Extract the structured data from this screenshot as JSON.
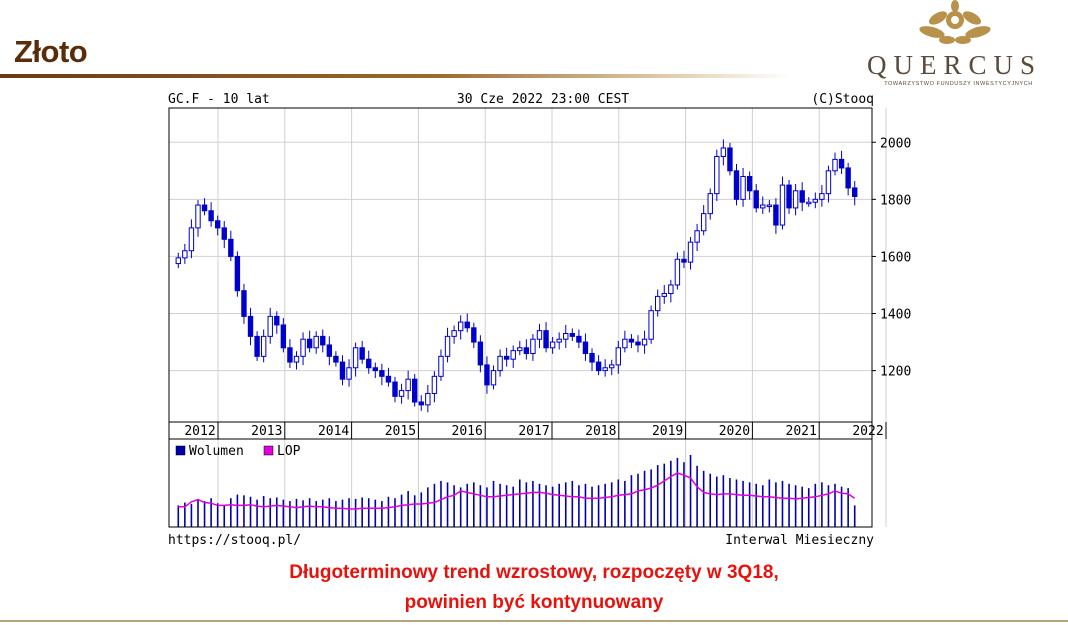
{
  "slide": {
    "title": "Złoto",
    "caption_line1": "Długoterminowy trend wzrostowy, rozpoczęty w 3Q18,",
    "caption_line2": "powinien być kontynuowany"
  },
  "logo": {
    "word": "QUERCUS",
    "subtitle": "TOWARZYSTWO FUNDUSZY INWESTYCYJNYCH",
    "gold": "#b8924a"
  },
  "chart_data": {
    "type": "candlestick",
    "header_left": "GC.F - 10 lat",
    "header_center": "30 Cze 2022 23:00 CEST",
    "header_right": "(C)Stooq",
    "footer_left": "https://stooq.pl/",
    "footer_right": "Interwal Miesieczny",
    "y_ticks": [
      1200,
      1400,
      1600,
      1800,
      2000
    ],
    "ylim": [
      1020,
      2120
    ],
    "x_ticks": [
      "2012",
      "2013",
      "2014",
      "2015",
      "2016",
      "2017",
      "2018",
      "2019",
      "2020",
      "2021",
      "2022"
    ],
    "grid": true,
    "up_color": "#ffffff",
    "down_color": "#0000cc",
    "candle_stroke": "#0000cc",
    "closes": [
      1595,
      1620,
      1700,
      1780,
      1760,
      1725,
      1700,
      1660,
      1600,
      1480,
      1390,
      1320,
      1250,
      1320,
      1390,
      1360,
      1280,
      1230,
      1250,
      1310,
      1280,
      1320,
      1290,
      1250,
      1230,
      1170,
      1210,
      1280,
      1240,
      1210,
      1200,
      1180,
      1160,
      1110,
      1130,
      1170,
      1090,
      1080,
      1120,
      1180,
      1250,
      1320,
      1340,
      1370,
      1350,
      1300,
      1220,
      1150,
      1200,
      1250,
      1240,
      1270,
      1280,
      1260,
      1310,
      1340,
      1280,
      1300,
      1310,
      1330,
      1320,
      1300,
      1260,
      1230,
      1200,
      1210,
      1220,
      1280,
      1310,
      1300,
      1290,
      1310,
      1410,
      1460,
      1470,
      1500,
      1590,
      1580,
      1650,
      1690,
      1750,
      1820,
      1950,
      1980,
      1900,
      1800,
      1880,
      1830,
      1770,
      1780,
      1780,
      1710,
      1850,
      1770,
      1830,
      1790,
      1790,
      1800,
      1820,
      1900,
      1940,
      1910,
      1840,
      1810
    ],
    "volume_max": 100,
    "volume": [
      30,
      34,
      32,
      38,
      36,
      40,
      33,
      30,
      40,
      45,
      44,
      42,
      38,
      43,
      40,
      41,
      38,
      36,
      39,
      37,
      40,
      36,
      38,
      40,
      36,
      38,
      40,
      39,
      41,
      40,
      38,
      36,
      42,
      40,
      45,
      50,
      44,
      48,
      55,
      60,
      64,
      62,
      58,
      55,
      60,
      62,
      58,
      55,
      64,
      60,
      58,
      56,
      66,
      62,
      64,
      60,
      58,
      56,
      60,
      62,
      64,
      58,
      60,
      56,
      58,
      60,
      62,
      66,
      64,
      72,
      74,
      78,
      80,
      86,
      88,
      92,
      96,
      90,
      100,
      85,
      78,
      74,
      70,
      72,
      68,
      66,
      64,
      62,
      60,
      58,
      66,
      62,
      64,
      60,
      58,
      56,
      54,
      60,
      62,
      58,
      60,
      56,
      54,
      30
    ],
    "lop_max": 100,
    "lop": [
      28,
      28,
      35,
      38,
      34,
      33,
      30,
      30,
      31,
      30,
      30,
      31,
      29,
      28,
      29,
      30,
      29,
      28,
      27,
      28,
      29,
      28,
      28,
      27,
      26,
      26,
      25,
      25,
      26,
      26,
      26,
      26,
      27,
      28,
      30,
      31,
      32,
      32,
      33,
      34,
      38,
      42,
      44,
      50,
      48,
      46,
      44,
      42,
      42,
      43,
      44,
      45,
      46,
      47,
      48,
      48,
      47,
      45,
      44,
      43,
      42,
      42,
      40,
      40,
      40,
      41,
      42,
      44,
      45,
      46,
      50,
      52,
      54,
      58,
      64,
      70,
      75,
      72,
      68,
      56,
      48,
      46,
      45,
      46,
      46,
      45,
      44,
      44,
      43,
      42,
      42,
      41,
      40,
      40,
      39,
      40,
      41,
      42,
      44,
      46,
      50,
      47,
      46,
      40
    ],
    "volume_legend": "Wolumen",
    "lop_legend": "LOP",
    "volume_color": "#0000aa",
    "lop_color": "#e000e0"
  }
}
